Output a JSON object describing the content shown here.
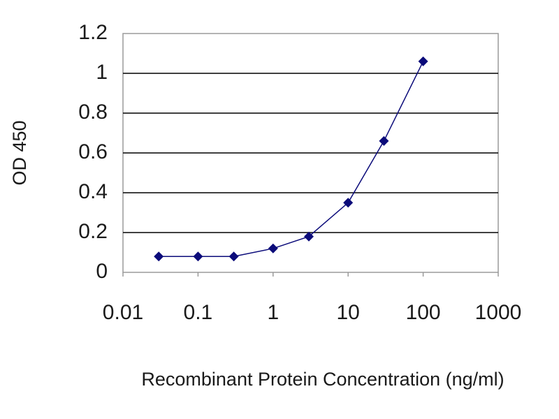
{
  "chart_data": {
    "type": "line",
    "title": "",
    "xlabel": "Recombinant Protein Concentration (ng/ml)",
    "ylabel": "OD 450",
    "x_scale": "log",
    "xlim": [
      0.01,
      1000
    ],
    "ylim": [
      0,
      1.2
    ],
    "x_ticks": [
      "0.01",
      "0.1",
      "1",
      "10",
      "100",
      "1000"
    ],
    "y_ticks": [
      "0",
      "0.2",
      "0.4",
      "0.6",
      "0.8",
      "1",
      "1.2"
    ],
    "grid": "horizontal",
    "legend": "none",
    "colors": {
      "series": "#0b0b7a",
      "grid": "#000000",
      "axis": "#9a9a9a"
    },
    "series": [
      {
        "x": [
          0.03,
          0.1,
          0.3,
          1,
          3,
          10,
          30,
          100
        ],
        "y": [
          0.08,
          0.08,
          0.08,
          0.12,
          0.18,
          0.35,
          0.66,
          1.06
        ]
      }
    ]
  }
}
